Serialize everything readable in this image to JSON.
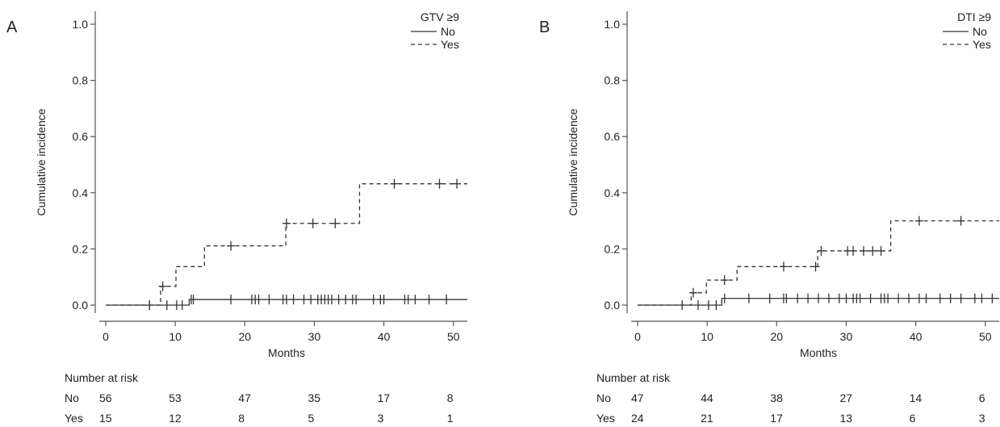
{
  "chart_data": [
    {
      "type": "line",
      "panel_label": "A",
      "ylabel": "Cumulative incidence",
      "xlabel": "Months",
      "xlim": [
        0,
        52
      ],
      "ylim": [
        0,
        1.0
      ],
      "x_ticks": [
        0,
        10,
        20,
        30,
        40,
        50
      ],
      "y_ticks": [
        "0.0",
        "0.2",
        "0.4",
        "0.6",
        "0.8",
        "1.0"
      ],
      "legend": {
        "position": "top-right",
        "title": "GTV ≥9"
      },
      "series": [
        {
          "name": "No",
          "line_style": "solid",
          "steps": [
            [
              0,
              0
            ],
            [
              12.0,
              0.02
            ],
            [
              52,
              0.02
            ]
          ],
          "censor_x": [
            6.3,
            6.3,
            8.8,
            10.2,
            11.0,
            12.3,
            12.6,
            18.0,
            21.0,
            21.5,
            22.0,
            23.5,
            25.5,
            26.0,
            27.0,
            28.5,
            29.5,
            30.5,
            31.0,
            31.5,
            32.0,
            32.5,
            33.5,
            34.5,
            35.5,
            36.0,
            38.5,
            39.5,
            40.0,
            43.0,
            43.5,
            44.5,
            46.5,
            49.0
          ]
        },
        {
          "name": "Yes",
          "line_style": "dashed",
          "steps": [
            [
              0,
              0
            ],
            [
              7.9,
              0.067
            ],
            [
              10.1,
              0.137
            ],
            [
              14.2,
              0.211
            ],
            [
              25.9,
              0.291
            ],
            [
              36.5,
              0.432
            ],
            [
              52,
              0.432
            ]
          ],
          "censor_x": [
            8.2,
            18.0,
            26.0,
            29.8,
            33.0,
            41.5,
            48.0,
            50.5
          ]
        }
      ],
      "risk_table": {
        "title": "Number at risk",
        "times": [
          0,
          10,
          20,
          30,
          40,
          50
        ],
        "rows": [
          {
            "label": "No",
            "values": [
              "56",
              "53",
              "47",
              "35",
              "17",
              "8"
            ]
          },
          {
            "label": "Yes",
            "values": [
              "15",
              "12",
              "8",
              "5",
              "3",
              "1"
            ]
          }
        ]
      }
    },
    {
      "type": "line",
      "panel_label": "B",
      "ylabel": "Cumulative incidence",
      "xlabel": "Months",
      "xlim": [
        0,
        52
      ],
      "ylim": [
        0,
        1.0
      ],
      "x_ticks": [
        0,
        10,
        20,
        30,
        40,
        50
      ],
      "y_ticks": [
        "0.0",
        "0.2",
        "0.4",
        "0.6",
        "0.8",
        "1.0"
      ],
      "legend": {
        "position": "top-right",
        "title": "DTI ≥9"
      },
      "series": [
        {
          "name": "No",
          "line_style": "solid",
          "steps": [
            [
              0,
              0
            ],
            [
              12.1,
              0.024
            ],
            [
              52,
              0.024
            ]
          ],
          "censor_x": [
            6.4,
            8.7,
            10.2,
            11.3,
            12.5,
            16.0,
            19.0,
            21.0,
            21.4,
            23.0,
            24.5,
            26.0,
            27.5,
            29.0,
            30.0,
            31.0,
            31.5,
            32.0,
            33.5,
            35.0,
            35.5,
            36.0,
            37.5,
            39.0,
            40.5,
            41.5,
            43.5,
            45.0,
            46.5,
            48.5,
            49.5,
            51.0
          ]
        },
        {
          "name": "Yes",
          "line_style": "dashed",
          "steps": [
            [
              0,
              0
            ],
            [
              7.7,
              0.044
            ],
            [
              9.9,
              0.089
            ],
            [
              14.3,
              0.137
            ],
            [
              25.9,
              0.193
            ],
            [
              36.4,
              0.3
            ],
            [
              52,
              0.3
            ]
          ],
          "censor_x": [
            8.0,
            12.5,
            21.0,
            25.6,
            26.4,
            30.2,
            31.0,
            32.5,
            33.8,
            35.0,
            40.5,
            46.5
          ]
        }
      ],
      "risk_table": {
        "title": "Number at risk",
        "times": [
          0,
          10,
          20,
          30,
          40,
          50
        ],
        "rows": [
          {
            "label": "No",
            "values": [
              "47",
              "44",
              "38",
              "27",
              "14",
              "6"
            ]
          },
          {
            "label": "Yes",
            "values": [
              "24",
              "21",
              "17",
              "13",
              "6",
              "3"
            ]
          }
        ]
      }
    }
  ]
}
